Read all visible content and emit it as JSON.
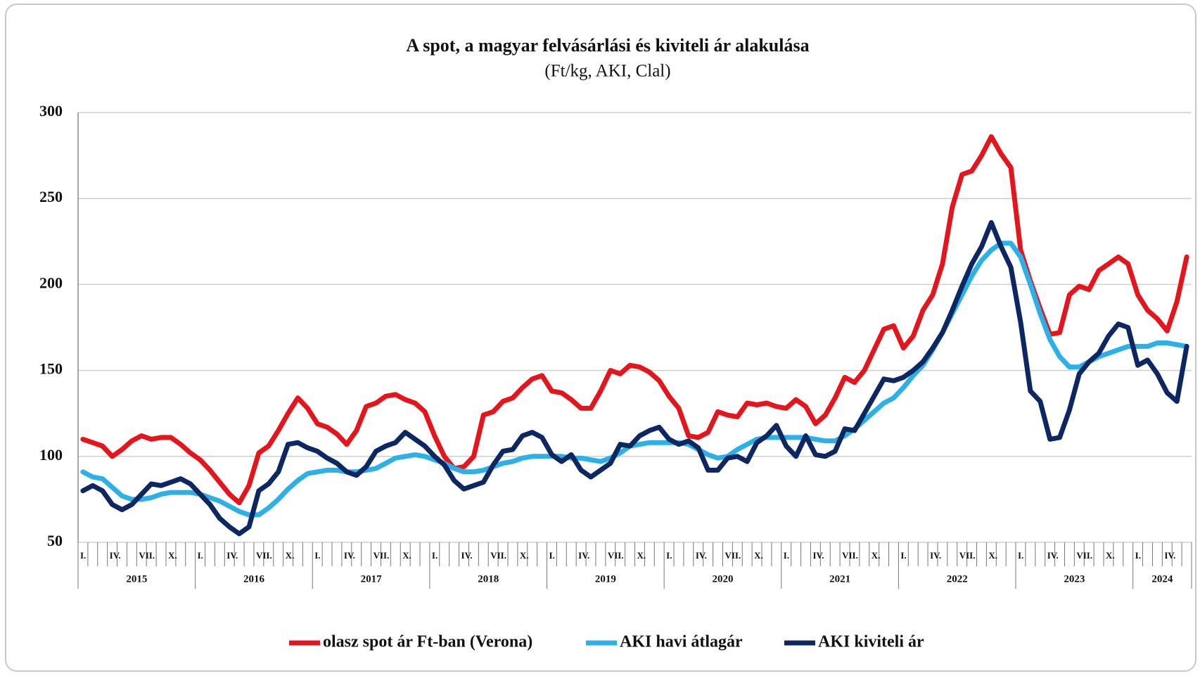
{
  "chart_data": {
    "type": "line",
    "title": "A spot, a magyar felvásárlási és kiviteli ár alakulása",
    "subtitle": "(Ft/kg, AKI, Clal)",
    "categories": [
      "I.",
      null,
      null,
      "IV.",
      null,
      null,
      "VII.",
      null,
      null,
      "X.",
      null,
      null,
      "I.",
      null,
      null,
      "IV.",
      null,
      null,
      "VII.",
      null,
      null,
      "X.",
      null,
      null,
      "I.",
      null,
      null,
      "IV.",
      null,
      null,
      "VII.",
      null,
      null,
      "X.",
      null,
      null,
      "I.",
      null,
      null,
      "IV.",
      null,
      null,
      "VII.",
      null,
      null,
      "X.",
      null,
      null,
      "I.",
      null,
      null,
      "IV.",
      null,
      null,
      "VII.",
      null,
      null,
      "X.",
      null,
      null,
      "I.",
      null,
      null,
      "IV.",
      null,
      null,
      "VII.",
      null,
      null,
      "X.",
      null,
      null,
      "I.",
      null,
      null,
      "IV.",
      null,
      null,
      "VII.",
      null,
      null,
      "X.",
      null,
      null,
      "I.",
      null,
      null,
      "IV.",
      null,
      null,
      "VII.",
      null,
      null,
      "X.",
      null,
      null,
      "I.",
      null,
      null,
      "IV.",
      null,
      null,
      "VII.",
      null,
      null,
      "X.",
      null,
      null,
      "I.",
      null,
      null,
      "IV.",
      null,
      null
    ],
    "years": [
      "2015",
      "2016",
      "2017",
      "2018",
      "2019",
      "2020",
      "2021",
      "2022",
      "2023",
      "2024"
    ],
    "ylim": [
      50,
      300
    ],
    "yticks": [
      50,
      100,
      150,
      200,
      250,
      300
    ],
    "grid": true,
    "legend": "bottom",
    "series": [
      {
        "name": "olasz spot ár Ft-ban (Verona)",
        "color": "#e3161d",
        "values": [
          110,
          108,
          106,
          100,
          104,
          109,
          112,
          110,
          111,
          111,
          107,
          102,
          98,
          92,
          85,
          78,
          73,
          83,
          102,
          106,
          115,
          125,
          134,
          128,
          119,
          117,
          113,
          107,
          115,
          129,
          131,
          135,
          136,
          133,
          131,
          126,
          112,
          100,
          93,
          94,
          100,
          124,
          126,
          132,
          134,
          140,
          145,
          147,
          138,
          137,
          133,
          128,
          128,
          138,
          150,
          148,
          153,
          152,
          149,
          144,
          135,
          128,
          112,
          111,
          114,
          126,
          124,
          123,
          131,
          130,
          131,
          129,
          128,
          133,
          129,
          119,
          124,
          134,
          146,
          143,
          150,
          162,
          174,
          176,
          163,
          170,
          185,
          194,
          212,
          245,
          264,
          266,
          275,
          286,
          276,
          268,
          220,
          202,
          186,
          171,
          172,
          194,
          199,
          197,
          208,
          212,
          216,
          212,
          194,
          185,
          180,
          173,
          190,
          216
        ]
      },
      {
        "name": "AKI havi átlagár",
        "color": "#2db0e6",
        "values": [
          91,
          88,
          87,
          82,
          77,
          75,
          75,
          76,
          78,
          79,
          79,
          79,
          78,
          76,
          74,
          71,
          68,
          66,
          66,
          70,
          75,
          81,
          86,
          90,
          91,
          92,
          92,
          91,
          91,
          92,
          93,
          96,
          99,
          100,
          101,
          100,
          98,
          96,
          93,
          91,
          91,
          92,
          94,
          96,
          97,
          99,
          100,
          100,
          100,
          100,
          99,
          99,
          98,
          97,
          99,
          102,
          106,
          107,
          108,
          108,
          108,
          108,
          107,
          104,
          101,
          99,
          100,
          104,
          107,
          110,
          111,
          111,
          111,
          111,
          111,
          110,
          109,
          109,
          112,
          116,
          121,
          126,
          131,
          134,
          140,
          147,
          153,
          162,
          172,
          183,
          194,
          205,
          214,
          220,
          224,
          224,
          216,
          200,
          183,
          168,
          158,
          152,
          152,
          155,
          158,
          160,
          162,
          164,
          164,
          164,
          166,
          166,
          165,
          164
        ]
      },
      {
        "name": "AKI kiviteli ár",
        "color": "#0d2762",
        "values": [
          80,
          83,
          80,
          72,
          69,
          72,
          78,
          84,
          83,
          85,
          87,
          84,
          78,
          72,
          64,
          59,
          55,
          59,
          80,
          84,
          91,
          107,
          108,
          105,
          103,
          99,
          96,
          91,
          89,
          94,
          103,
          106,
          108,
          114,
          110,
          106,
          100,
          95,
          86,
          81,
          83,
          85,
          95,
          103,
          104,
          112,
          114,
          111,
          101,
          97,
          101,
          92,
          88,
          92,
          96,
          107,
          106,
          112,
          115,
          117,
          110,
          107,
          109,
          105,
          92,
          92,
          99,
          100,
          97,
          108,
          112,
          118,
          106,
          100,
          112,
          101,
          100,
          103,
          116,
          115,
          125,
          135,
          145,
          144,
          146,
          150,
          155,
          163,
          172,
          185,
          199,
          212,
          222,
          236,
          222,
          210,
          178,
          138,
          132,
          110,
          111,
          127,
          148,
          155,
          160,
          170,
          177,
          175,
          153,
          156,
          148,
          137,
          132,
          164
        ]
      }
    ]
  }
}
